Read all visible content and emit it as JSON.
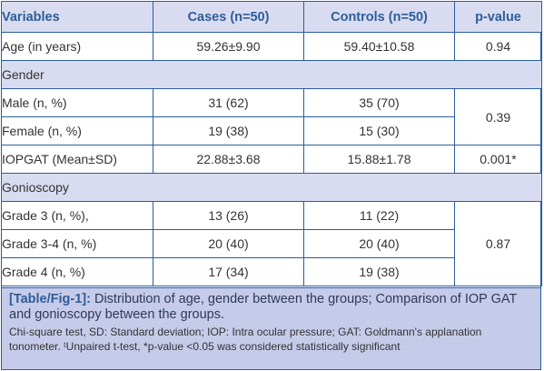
{
  "table": {
    "headers": [
      "Variables",
      "Cases (n=50)",
      "Controls (n=50)",
      "p-value"
    ],
    "age": {
      "label": "Age (in years)",
      "cases": "59.26±9.90",
      "controls": "59.40±10.58",
      "p": "0.94"
    },
    "gender_heading": "Gender",
    "male": {
      "label": "Male (n, %)",
      "cases": "31 (62)",
      "controls": "35 (70)"
    },
    "female": {
      "label": "Female (n, %)",
      "cases": "19 (38)",
      "controls": "15 (30)"
    },
    "gender_p": "0.39",
    "iop": {
      "label": "IOPGAT (Mean±SD)",
      "cases": "22.88±3.68",
      "controls": "15.88±1.78",
      "p": "0.001*"
    },
    "gonio_heading": "Gonioscopy",
    "grade3": {
      "label": "Grade 3 (n, %),",
      "cases": "13 (26)",
      "controls": "11 (22)"
    },
    "grade34": {
      "label": "Grade 3-4 (n, %)",
      "cases": "20 (40)",
      "controls": "20 (40)"
    },
    "grade4": {
      "label": "Grade 4 (n, %)",
      "cases": "17 (34)",
      "controls": "19 (38)"
    },
    "gonio_p": "0.87"
  },
  "caption": {
    "label": "[Table/Fig-1]:",
    "title": " Distribution of age, gender between the groups; Comparison of IOP GAT and gonioscopy between the groups.",
    "note": "Chi-square test, SD: Standard deviation; IOP: Intra ocular pressure; GAT: Goldmann's applanation tonometer. ᵗUnpaired t-test, *p-value <0.05 was considered statistically significant"
  },
  "colors": {
    "border": "#2a5d9f",
    "header_bg": "#d9dcf0",
    "caption_bg": "#c6cbe9",
    "header_text": "#2e5d99"
  }
}
